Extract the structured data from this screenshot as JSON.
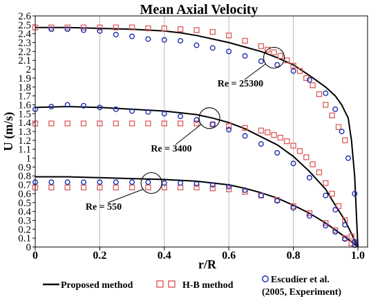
{
  "chart_data": {
    "type": "line",
    "title": "Mean Axial Velocity",
    "xlabel": "r/R",
    "ylabel": "U (m/s)",
    "xlim": [
      0,
      1.05
    ],
    "ylim": [
      0,
      2.6
    ],
    "x_ticks": [
      0,
      0.2,
      0.4,
      0.6,
      0.8,
      1.0
    ],
    "x_tick_labels": [
      "0",
      "0.2",
      "0.4",
      "0.6",
      "0.8",
      "1.0"
    ],
    "y_ticks": [
      0,
      0.1,
      0.2,
      0.3,
      0.4,
      0.5,
      0.6,
      0.7,
      0.8,
      0.9,
      1,
      1.1,
      1.2,
      1.3,
      1.4,
      1.5,
      1.6,
      1.7,
      1.8,
      1.9,
      2,
      2.1,
      2.2,
      2.3,
      2.4,
      2.5,
      2.6
    ],
    "y_tick_labels": [
      "0",
      "0.1",
      "0.2",
      "0.3",
      "0.4",
      "0.5",
      "0.6",
      "0.7",
      "0.8",
      "0.9",
      "1",
      "1.1",
      "1.2",
      "1.3",
      "1.4",
      "1.5",
      "1.6",
      "1.7",
      "1.8",
      "1.9",
      "2",
      "2.1",
      "2.2",
      "2.3",
      "2.4",
      "2.5",
      "2.6"
    ],
    "grid": "vertical",
    "colors": {
      "proposed": "#000000",
      "hb": "#e05a5a",
      "escudier": "#1f2fb0"
    },
    "legend": [
      {
        "label": "Proposed method",
        "marker": "line",
        "color": "#000000"
      },
      {
        "label": "H-B method",
        "marker": "square",
        "color": "#e05a5a"
      },
      {
        "label": "Escudier et al.",
        "label2": "(2005, Experiment)",
        "marker": "circle",
        "color": "#1f2fb0"
      }
    ],
    "annotations": [
      {
        "text": "Re = 25300",
        "x": 0.74,
        "y": 2.13
      },
      {
        "text": "Re = 3400",
        "x": 0.54,
        "y": 1.45
      },
      {
        "text": "Re = 550",
        "x": 0.36,
        "y": 0.72
      }
    ],
    "series": [
      {
        "name": "Proposed method",
        "case": "Re = 25300",
        "kind": "line",
        "color": "#000000",
        "x": [
          0,
          0.1,
          0.2,
          0.3,
          0.4,
          0.45,
          0.5,
          0.55,
          0.6,
          0.65,
          0.7,
          0.75,
          0.8,
          0.85,
          0.9,
          0.93,
          0.95,
          0.97,
          0.98,
          0.99,
          1.0
        ],
        "y": [
          2.47,
          2.47,
          2.46,
          2.45,
          2.43,
          2.41,
          2.38,
          2.34,
          2.3,
          2.25,
          2.2,
          2.13,
          2.05,
          1.93,
          1.8,
          1.7,
          1.6,
          1.45,
          1.2,
          0.8,
          0.0
        ]
      },
      {
        "name": "H-B method",
        "case": "Re = 25300",
        "kind": "square",
        "color": "#e05a5a",
        "x": [
          0,
          0.05,
          0.1,
          0.15,
          0.2,
          0.25,
          0.3,
          0.35,
          0.4,
          0.45,
          0.5,
          0.55,
          0.6,
          0.65,
          0.7,
          0.72,
          0.74,
          0.76,
          0.78,
          0.8,
          0.82,
          0.84,
          0.86,
          0.88,
          0.9,
          0.92,
          0.94,
          0.96
        ],
        "y": [
          2.47,
          2.47,
          2.47,
          2.47,
          2.47,
          2.47,
          2.47,
          2.46,
          2.46,
          2.45,
          2.44,
          2.42,
          2.38,
          2.32,
          2.26,
          2.22,
          2.19,
          2.15,
          2.1,
          2.04,
          1.98,
          1.9,
          1.82,
          1.72,
          1.6,
          1.48,
          1.35,
          1.2
        ]
      },
      {
        "name": "Escudier et al.",
        "case": "Re = 25300",
        "kind": "circle",
        "color": "#1f2fb0",
        "x": [
          0.05,
          0.1,
          0.15,
          0.2,
          0.25,
          0.3,
          0.35,
          0.4,
          0.45,
          0.5,
          0.55,
          0.6,
          0.65,
          0.7,
          0.75,
          0.8,
          0.85,
          0.9,
          0.93,
          0.95,
          0.97,
          0.99
        ],
        "y": [
          2.45,
          2.45,
          2.44,
          2.43,
          2.39,
          2.37,
          2.34,
          2.33,
          2.32,
          2.27,
          2.24,
          2.2,
          2.15,
          2.09,
          2.05,
          1.98,
          1.88,
          1.73,
          1.55,
          1.3,
          1.0,
          0.6
        ]
      },
      {
        "name": "Proposed method",
        "case": "Re = 3400",
        "kind": "line",
        "color": "#000000",
        "x": [
          0,
          0.1,
          0.2,
          0.3,
          0.4,
          0.5,
          0.55,
          0.6,
          0.65,
          0.7,
          0.75,
          0.8,
          0.85,
          0.9,
          0.93,
          0.96,
          0.98,
          1.0
        ],
        "y": [
          1.57,
          1.58,
          1.57,
          1.55,
          1.53,
          1.49,
          1.45,
          1.4,
          1.33,
          1.24,
          1.15,
          1.02,
          0.85,
          0.65,
          0.47,
          0.3,
          0.15,
          0.0
        ]
      },
      {
        "name": "H-B method",
        "case": "Re = 3400",
        "kind": "square",
        "color": "#e05a5a",
        "x": [
          0,
          0.05,
          0.1,
          0.15,
          0.2,
          0.25,
          0.3,
          0.35,
          0.4,
          0.45,
          0.5,
          0.55,
          0.6,
          0.65,
          0.7,
          0.72,
          0.74,
          0.76,
          0.78,
          0.8,
          0.82,
          0.84,
          0.86,
          0.88,
          0.9,
          0.92,
          0.94,
          0.96,
          0.98
        ],
        "y": [
          1.39,
          1.39,
          1.39,
          1.39,
          1.39,
          1.39,
          1.39,
          1.39,
          1.39,
          1.39,
          1.39,
          1.38,
          1.36,
          1.34,
          1.31,
          1.29,
          1.26,
          1.23,
          1.19,
          1.14,
          1.08,
          1.01,
          0.93,
          0.84,
          0.72,
          0.6,
          0.46,
          0.3,
          0.12
        ]
      },
      {
        "name": "Escudier et al.",
        "case": "Re = 3400",
        "kind": "circle",
        "color": "#1f2fb0",
        "x": [
          0,
          0.05,
          0.1,
          0.15,
          0.2,
          0.25,
          0.3,
          0.35,
          0.4,
          0.45,
          0.5,
          0.55,
          0.6,
          0.65,
          0.7,
          0.75,
          0.8,
          0.85,
          0.9,
          0.93,
          0.96,
          0.99
        ],
        "y": [
          1.55,
          1.58,
          1.6,
          1.59,
          1.57,
          1.55,
          1.53,
          1.52,
          1.5,
          1.47,
          1.43,
          1.38,
          1.32,
          1.25,
          1.16,
          1.06,
          0.94,
          0.78,
          0.58,
          0.42,
          0.25,
          0.06
        ]
      },
      {
        "name": "Proposed method",
        "case": "Re = 550",
        "kind": "line",
        "color": "#000000",
        "x": [
          0,
          0.1,
          0.2,
          0.3,
          0.4,
          0.5,
          0.6,
          0.65,
          0.7,
          0.75,
          0.8,
          0.85,
          0.9,
          0.95,
          0.98,
          1.0
        ],
        "y": [
          0.79,
          0.79,
          0.78,
          0.77,
          0.76,
          0.74,
          0.7,
          0.66,
          0.61,
          0.55,
          0.47,
          0.38,
          0.27,
          0.14,
          0.06,
          0.0
        ]
      },
      {
        "name": "H-B method",
        "case": "Re = 550",
        "kind": "square",
        "color": "#e05a5a",
        "x": [
          0,
          0.05,
          0.1,
          0.15,
          0.2,
          0.25,
          0.3,
          0.35,
          0.4,
          0.45,
          0.5,
          0.55,
          0.6,
          0.65,
          0.7,
          0.75,
          0.8,
          0.85,
          0.9,
          0.93,
          0.96,
          0.98
        ],
        "y": [
          0.67,
          0.67,
          0.67,
          0.67,
          0.67,
          0.67,
          0.67,
          0.67,
          0.67,
          0.67,
          0.67,
          0.66,
          0.65,
          0.62,
          0.58,
          0.53,
          0.46,
          0.38,
          0.27,
          0.19,
          0.1,
          0.04
        ]
      },
      {
        "name": "Escudier et al.",
        "case": "Re = 550",
        "kind": "circle",
        "color": "#1f2fb0",
        "x": [
          0,
          0.05,
          0.1,
          0.15,
          0.2,
          0.25,
          0.3,
          0.35,
          0.4,
          0.45,
          0.5,
          0.55,
          0.6,
          0.65,
          0.7,
          0.75,
          0.8,
          0.85,
          0.9,
          0.93,
          0.96,
          0.99
        ],
        "y": [
          0.73,
          0.73,
          0.73,
          0.73,
          0.73,
          0.73,
          0.73,
          0.73,
          0.72,
          0.72,
          0.71,
          0.7,
          0.68,
          0.64,
          0.58,
          0.52,
          0.44,
          0.35,
          0.24,
          0.17,
          0.09,
          0.02
        ]
      }
    ]
  }
}
